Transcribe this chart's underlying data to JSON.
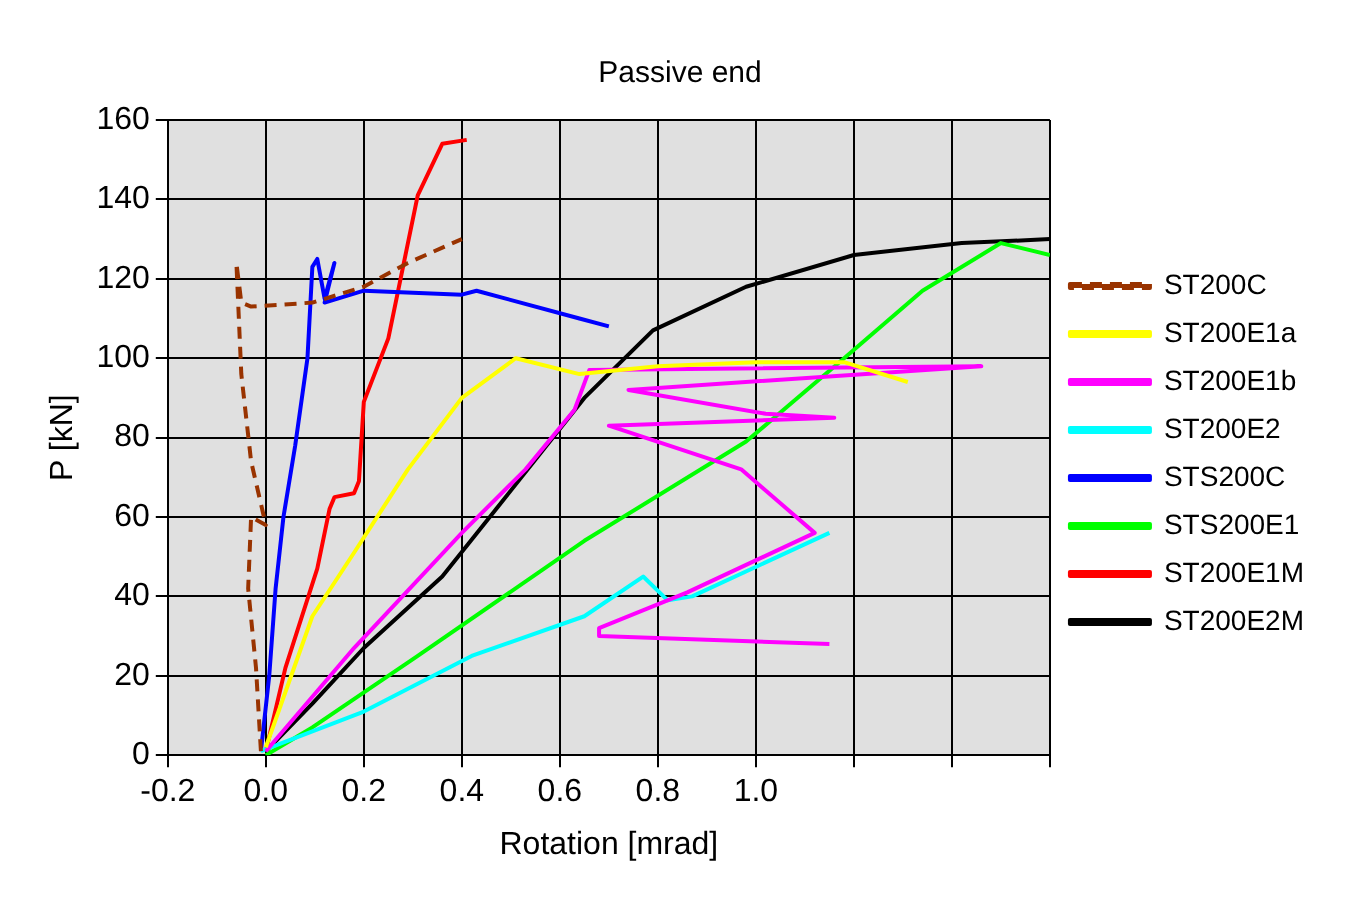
{
  "chart_data": {
    "type": "line",
    "title": "Passive end",
    "xlabel": "Rotation [mrad]",
    "ylabel": "P [kN]",
    "xlim": [
      -0.2,
      1.6
    ],
    "xticks": [
      -0.2,
      {
        "value": 0,
        "label": "0.0"
      },
      0.2,
      0.4,
      0.6,
      0.8,
      {
        "value": 1,
        "label": "1.0"
      },
      {
        "value": 1.2,
        "label": null
      },
      {
        "value": 1.4,
        "label": null
      },
      {
        "value": 1.6,
        "label": null
      }
    ],
    "ylim": [
      0,
      160
    ],
    "yticks": [
      0,
      20,
      40,
      60,
      80,
      100,
      120,
      140,
      160
    ],
    "grid": true,
    "legend": "right",
    "marker": "none",
    "series": [
      {
        "name": "ST200C",
        "color": "#993300",
        "line_style": "dashed",
        "x": [
          -0.01,
          -0.02,
          -0.036,
          -0.03,
          0.0,
          -0.03,
          -0.05,
          -0.06,
          -0.05,
          -0.03,
          0.095,
          0.2,
          0.29,
          0.4
        ],
        "values": [
          1,
          22,
          42,
          60,
          58,
          74,
          96,
          124,
          114,
          113,
          114,
          118,
          124,
          130
        ]
      },
      {
        "name": "ST200E1a",
        "color": "#ffff00",
        "x": [
          0.0,
          0.095,
          0.18,
          0.29,
          0.4,
          0.51,
          0.64,
          0.8,
          1.0,
          1.18,
          1.31
        ],
        "values": [
          2,
          35,
          51,
          72,
          90,
          100,
          96,
          98,
          99,
          99,
          94
        ]
      },
      {
        "name": "ST200E1b",
        "color": "#ff00ff",
        "x": [
          0.0,
          0.18,
          0.4,
          0.53,
          0.63,
          0.66,
          1.46,
          0.74,
          1.02,
          1.16,
          0.7,
          0.97,
          1.12,
          0.86,
          0.68,
          0.68,
          1.15
        ],
        "values": [
          1,
          27,
          56,
          72,
          87,
          97,
          98,
          92,
          86,
          85,
          83,
          72,
          56,
          41,
          32,
          30,
          28
        ]
      },
      {
        "name": "ST200E2",
        "color": "#00ffff",
        "x": [
          -0.01,
          0.2,
          0.42,
          0.65,
          0.77,
          0.82,
          0.87,
          1.15
        ],
        "values": [
          1,
          11,
          25,
          35,
          45,
          39,
          40,
          56
        ]
      },
      {
        "name": "STS200C",
        "color": "#0000ff",
        "x": [
          -0.01,
          0.007,
          0.02,
          0.036,
          0.06,
          0.085,
          0.095,
          0.105,
          0.12,
          0.14,
          0.12,
          0.2,
          0.4,
          0.43,
          0.64,
          0.7
        ],
        "values": [
          1,
          20,
          42,
          60,
          78,
          100,
          123,
          125,
          115,
          124,
          114,
          117,
          116,
          117,
          110,
          108
        ]
      },
      {
        "name": "STS200E1",
        "color": "#00ff00",
        "x": [
          0.0,
          0.095,
          0.31,
          0.65,
          0.98,
          1.18,
          1.34,
          1.5,
          1.6
        ],
        "values": [
          0,
          7,
          25,
          54,
          79,
          100,
          117,
          129,
          126
        ]
      },
      {
        "name": "ST200E1M",
        "color": "#ff0000",
        "x": [
          0.0,
          0.04,
          0.105,
          0.13,
          0.14,
          0.18,
          0.19,
          0.2,
          0.25,
          0.28,
          0.31,
          0.36,
          0.41
        ],
        "values": [
          1,
          22,
          47,
          62,
          65,
          66,
          69,
          89,
          105,
          123,
          141,
          154,
          155
        ]
      },
      {
        "name": "ST200E2M",
        "color": "#000000",
        "x": [
          0.0,
          0.095,
          0.2,
          0.36,
          0.47,
          0.65,
          0.79,
          0.98,
          1.2,
          1.42,
          1.6
        ],
        "values": [
          1,
          13,
          27,
          45,
          62,
          90,
          107,
          118,
          126,
          129,
          130
        ]
      }
    ]
  }
}
